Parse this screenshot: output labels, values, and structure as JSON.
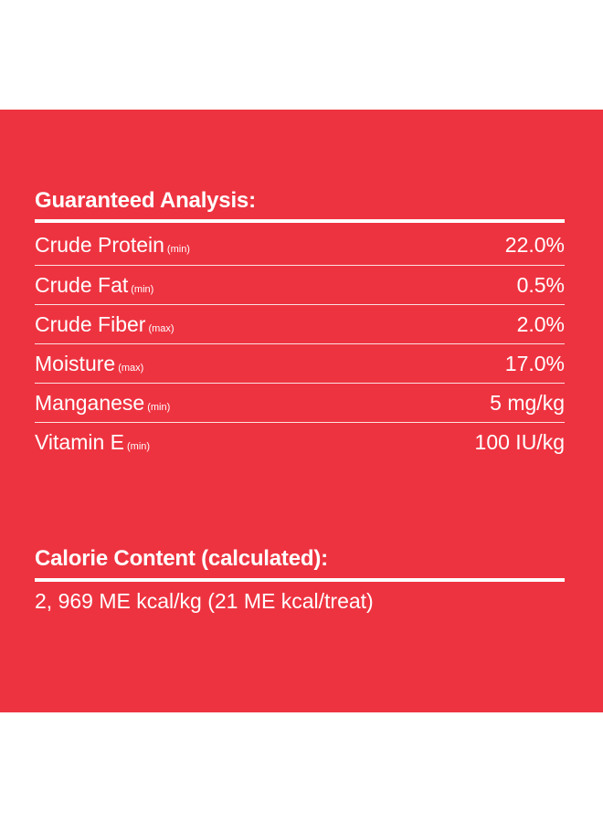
{
  "guaranteed_analysis": {
    "title": "Guaranteed Analysis:",
    "rows": [
      {
        "name": "Crude Protein",
        "qualifier": "(min)",
        "value": "22.0%"
      },
      {
        "name": "Crude Fat",
        "qualifier": "(min)",
        "value": "0.5%"
      },
      {
        "name": "Crude Fiber",
        "qualifier": "(max)",
        "value": "2.0%"
      },
      {
        "name": "Moisture",
        "qualifier": "(max)",
        "value": "17.0%"
      },
      {
        "name": "Manganese",
        "qualifier": "(min)",
        "value": "5 mg/kg"
      },
      {
        "name": "Vitamin E",
        "qualifier": "(min)",
        "value": "100 IU/kg"
      }
    ]
  },
  "calorie_content": {
    "title": "Calorie Content (calculated):",
    "text": "2, 969 ME kcal/kg (21 ME kcal/treat)"
  },
  "colors": {
    "panel_background": "#ee3340",
    "text": "#ffffff",
    "page_background": "#ffffff"
  }
}
